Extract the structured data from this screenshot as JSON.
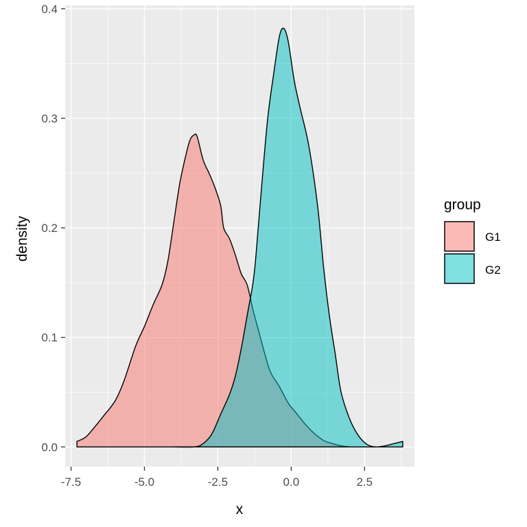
{
  "chart_data": {
    "type": "area",
    "subtype": "density",
    "xlabel": "x",
    "ylabel": "density",
    "xlim": [
      -7.7,
      4.2
    ],
    "ylim": [
      -0.018,
      0.403
    ],
    "x_ticks": [
      -7.5,
      -5.0,
      -2.5,
      0.0,
      2.5
    ],
    "x_tick_labels": [
      "-7.5",
      "-5.0",
      "-2.5",
      "0.0",
      "2.5"
    ],
    "y_ticks": [
      0.0,
      0.1,
      0.2,
      0.3,
      0.4
    ],
    "y_tick_labels": [
      "0.0",
      "0.1",
      "0.2",
      "0.3",
      "0.4"
    ],
    "grid": true,
    "legend": {
      "title": "group",
      "position": "right",
      "entries": [
        "G1",
        "G2"
      ]
    },
    "colors": {
      "panel_bg": "#ebebeb",
      "grid": "#ffffff",
      "G1": "#f8766d",
      "G2": "#00bfc4",
      "outline": "#000000"
    },
    "fill_opacity": 0.5,
    "series": [
      {
        "name": "G1",
        "x": [
          -7.3,
          -7.0,
          -6.7,
          -6.4,
          -6.0,
          -5.7,
          -5.3,
          -5.0,
          -4.7,
          -4.4,
          -4.2,
          -4.0,
          -3.8,
          -3.6,
          -3.45,
          -3.3,
          -3.2,
          -3.0,
          -2.8,
          -2.6,
          -2.4,
          -2.3,
          -2.1,
          -1.9,
          -1.7,
          -1.5,
          -1.3,
          -1.1,
          -0.9,
          -0.7,
          -0.4,
          -0.1,
          0.2,
          0.5,
          0.8,
          1.1,
          1.4,
          1.7,
          2.0
        ],
        "y": [
          0.005,
          0.009,
          0.018,
          0.028,
          0.042,
          0.06,
          0.092,
          0.11,
          0.13,
          0.148,
          0.17,
          0.205,
          0.24,
          0.265,
          0.28,
          0.285,
          0.283,
          0.262,
          0.25,
          0.237,
          0.22,
          0.2,
          0.19,
          0.175,
          0.158,
          0.148,
          0.125,
          0.105,
          0.085,
          0.068,
          0.055,
          0.04,
          0.03,
          0.02,
          0.012,
          0.006,
          0.003,
          0.001,
          0.0
        ]
      },
      {
        "name": "G2",
        "x": [
          -4.0,
          -3.3,
          -3.0,
          -2.7,
          -2.4,
          -2.1,
          -1.9,
          -1.7,
          -1.5,
          -1.3,
          -1.2,
          -1.0,
          -0.8,
          -0.6,
          -0.4,
          -0.25,
          -0.1,
          0.1,
          0.3,
          0.6,
          0.9,
          1.1,
          1.3,
          1.5,
          1.7,
          2.0,
          2.3,
          2.6,
          2.9,
          3.2,
          3.5,
          3.8
        ],
        "y": [
          0.0,
          0.0,
          0.003,
          0.012,
          0.03,
          0.048,
          0.065,
          0.09,
          0.12,
          0.15,
          0.175,
          0.24,
          0.3,
          0.34,
          0.375,
          0.382,
          0.37,
          0.335,
          0.31,
          0.275,
          0.22,
          0.165,
          0.12,
          0.085,
          0.05,
          0.025,
          0.01,
          0.002,
          0.0,
          0.001,
          0.003,
          0.005
        ]
      }
    ]
  }
}
